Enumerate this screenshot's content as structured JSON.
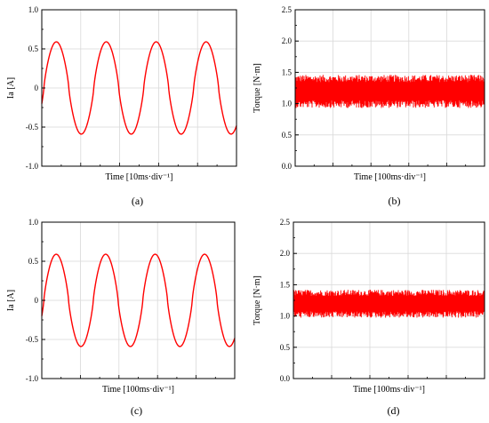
{
  "colors": {
    "trace": "#ff0000",
    "grid": "#d9d9d9",
    "axis": "#000000"
  },
  "chart_data": [
    {
      "panel": "a",
      "caption": "(a)",
      "type": "line",
      "xlabel": "Time [10ms·div⁻¹]",
      "ylabel": "Ia [A]",
      "ylim": [
        -1.0,
        1.0
      ],
      "yticks": [
        "1.0",
        "0.5",
        "0",
        "-0.5",
        "-1.0"
      ],
      "grid": true,
      "series": [
        {
          "amplitude": 0.59,
          "periods": 3.9,
          "phase_deg": -15,
          "values_x_span": [
            0,
            1
          ]
        }
      ]
    },
    {
      "panel": "b",
      "caption": "(b)",
      "type": "line",
      "xlabel": "Time [100ms·div⁻¹]",
      "ylabel": "Torque [N·m]",
      "ylim": [
        0.0,
        2.5
      ],
      "yticks": [
        "2.5",
        "2.0",
        "1.5",
        "1.0",
        "0.5",
        "0.0"
      ],
      "grid": true,
      "series": [
        {
          "mean": 1.2,
          "band_low": 0.93,
          "band_high": 1.46
        }
      ]
    },
    {
      "panel": "c",
      "caption": "(c)",
      "type": "line",
      "xlabel": "Time [100ms·div⁻¹]",
      "ylabel": "Ia [A]",
      "ylim": [
        -1.0,
        1.0
      ],
      "yticks": [
        "1.0",
        "0.5",
        "0",
        "-0.5",
        "-1.0"
      ],
      "grid": true,
      "series": [
        {
          "amplitude": 0.59,
          "periods": 3.9,
          "phase_deg": -15,
          "values_x_span": [
            0,
            1
          ]
        }
      ]
    },
    {
      "panel": "d",
      "caption": "(d)",
      "type": "line",
      "xlabel": "Time [100ms·div⁻¹]",
      "ylabel": "Torque [N·m]",
      "ylim": [
        0.0,
        2.5
      ],
      "yticks": [
        "2.5",
        "2.0",
        "1.5",
        "1.0",
        "0.5",
        "0.0"
      ],
      "grid": true,
      "series": [
        {
          "mean": 1.2,
          "band_low": 0.97,
          "band_high": 1.42
        }
      ]
    }
  ]
}
